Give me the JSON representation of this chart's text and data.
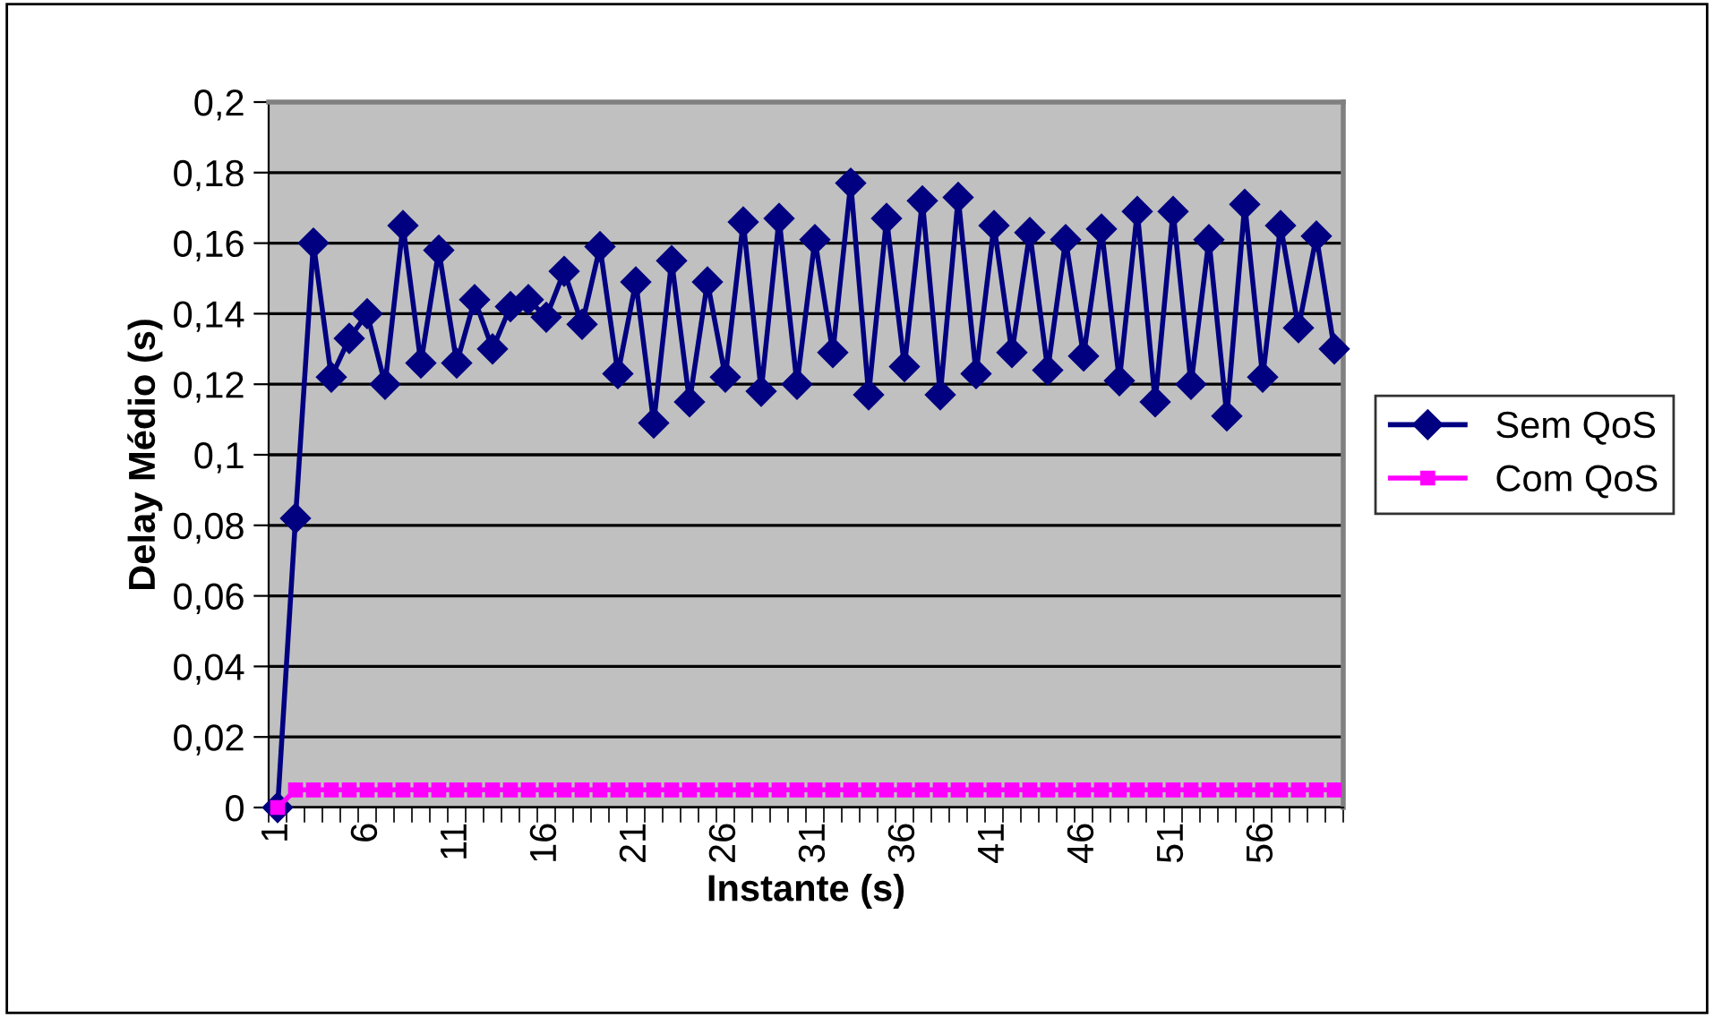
{
  "chart_data": {
    "type": "line",
    "xlabel": "Instante (s)",
    "ylabel": "Delay Médio (s)",
    "categories": [
      "1",
      null,
      null,
      null,
      null,
      "6",
      null,
      null,
      null,
      null,
      "11",
      null,
      null,
      null,
      null,
      "16",
      null,
      null,
      null,
      null,
      "21",
      null,
      null,
      null,
      null,
      "26",
      null,
      null,
      null,
      null,
      "31",
      null,
      null,
      null,
      null,
      "36",
      null,
      null,
      null,
      null,
      "41",
      null,
      null,
      null,
      null,
      "46",
      null,
      null,
      null,
      null,
      "51",
      null,
      null,
      null,
      null,
      "56",
      null,
      null,
      null,
      null
    ],
    "series": [
      {
        "name": "Sem QoS",
        "color": "#000080",
        "marker": "diamond",
        "values": [
          0,
          0.082,
          0.16,
          0.122,
          0.133,
          0.14,
          0.12,
          0.165,
          0.126,
          0.158,
          0.126,
          0.144,
          0.13,
          0.142,
          0.144,
          0.139,
          0.152,
          0.137,
          0.159,
          0.123,
          0.149,
          0.109,
          0.155,
          0.115,
          0.149,
          0.122,
          0.166,
          0.118,
          0.167,
          0.12,
          0.161,
          0.129,
          0.177,
          0.117,
          0.167,
          0.125,
          0.172,
          0.117,
          0.173,
          0.123,
          0.165,
          0.129,
          0.163,
          0.124,
          0.161,
          0.128,
          0.164,
          0.121,
          0.169,
          0.115,
          0.169,
          0.12,
          0.161,
          0.111,
          0.171,
          0.122,
          0.165,
          0.136,
          0.162,
          0.13
        ]
      },
      {
        "name": "Com QoS",
        "color": "#ff00ff",
        "marker": "square",
        "values": [
          0,
          0.005,
          0.005,
          0.005,
          0.005,
          0.005,
          0.005,
          0.005,
          0.005,
          0.005,
          0.005,
          0.005,
          0.005,
          0.005,
          0.005,
          0.005,
          0.005,
          0.005,
          0.005,
          0.005,
          0.005,
          0.005,
          0.005,
          0.005,
          0.005,
          0.005,
          0.005,
          0.005,
          0.005,
          0.005,
          0.005,
          0.005,
          0.005,
          0.005,
          0.005,
          0.005,
          0.005,
          0.005,
          0.005,
          0.005,
          0.005,
          0.005,
          0.005,
          0.005,
          0.005,
          0.005,
          0.005,
          0.005,
          0.005,
          0.005,
          0.005,
          0.005,
          0.005,
          0.005,
          0.005,
          0.005,
          0.005,
          0.005,
          0.005,
          0.005
        ]
      }
    ],
    "ylim": [
      0,
      0.2
    ],
    "yticks": [
      0,
      {
        "value": 0.02,
        "label": "0,02"
      },
      {
        "value": 0.04,
        "label": "0,04"
      },
      {
        "value": 0.06,
        "label": "0,06"
      },
      {
        "value": 0.08,
        "label": "0,08"
      },
      {
        "value": 0.1,
        "label": "0,1"
      },
      {
        "value": 0.12,
        "label": "0,12"
      },
      {
        "value": 0.14,
        "label": "0,14"
      },
      {
        "value": 0.16,
        "label": "0,16"
      },
      {
        "value": 0.18,
        "label": "0,18"
      },
      {
        "value": 0.2,
        "label": "0,2"
      }
    ],
    "grid": "y",
    "legend": "right",
    "line_style": "solid"
  }
}
